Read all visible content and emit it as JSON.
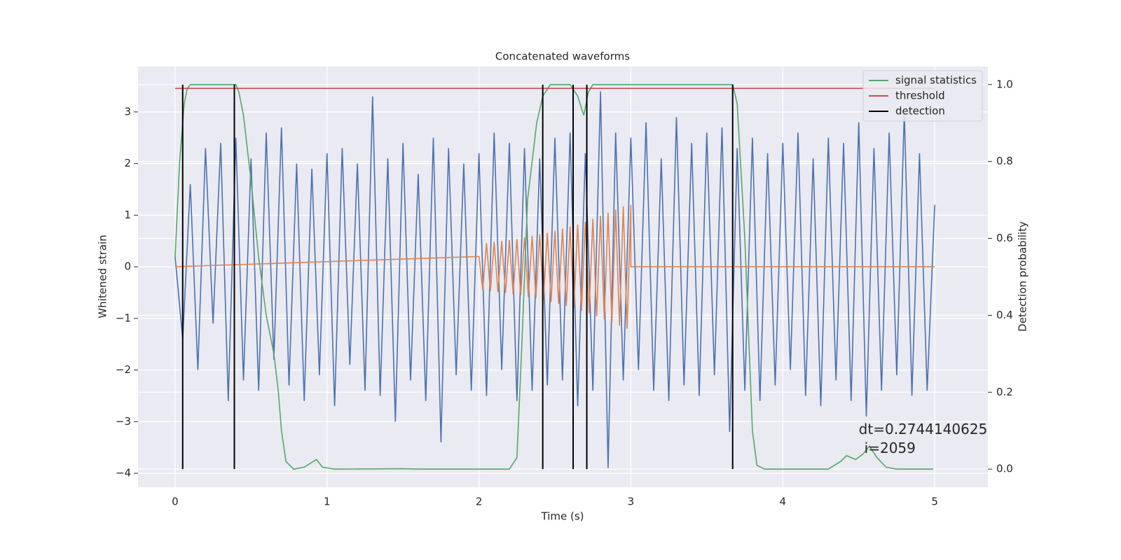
{
  "chart_data": {
    "type": "line",
    "title": "Concatenated waveforms",
    "xlabel": "Time (s)",
    "ylabel": "Whitened strain",
    "y2label": "Detection probability",
    "xlim": [
      -0.244,
      5.35
    ],
    "xticks": [
      0,
      1,
      2,
      3,
      4,
      5
    ],
    "ylim": [
      -4.27,
      3.88
    ],
    "yticks": [
      {
        "value": -4,
        "label": "−4"
      },
      {
        "value": -3,
        "label": "−3"
      },
      {
        "value": -2,
        "label": "−2"
      },
      {
        "value": -1,
        "label": "−1"
      },
      0,
      1,
      2,
      3
    ],
    "y2lim": [
      -0.047,
      1.047
    ],
    "y2ticks": [
      {
        "value": 0,
        "label": "0.0"
      },
      0.2,
      0.4,
      0.6,
      0.8,
      {
        "value": 1,
        "label": "1.0"
      }
    ],
    "grid": true,
    "legend": "upper right",
    "annotations": [
      "dt=0.2744140625",
      "i=2059"
    ],
    "annotation_at": [
      4.5,
      -3.3
    ],
    "series": [
      {
        "name": null,
        "color": "#4c72b0",
        "axis": "y",
        "x": [
          0,
          0.05,
          0.1,
          0.15,
          0.2,
          0.25,
          0.3,
          0.35,
          0.4,
          0.45,
          0.5,
          0.55,
          0.6,
          0.65,
          0.7,
          0.75,
          0.8,
          0.85,
          0.9,
          0.95,
          1,
          1.05,
          1.1,
          1.15,
          1.2,
          1.25,
          1.3,
          1.35,
          1.4,
          1.45,
          1.5,
          1.55,
          1.6,
          1.65,
          1.7,
          1.75,
          1.8,
          1.85,
          1.9,
          1.95,
          2,
          2.05,
          2.1,
          2.15,
          2.2,
          2.25,
          2.3,
          2.35,
          2.4,
          2.45,
          2.5,
          2.55,
          2.6,
          2.65,
          2.7,
          2.75,
          2.8,
          2.85,
          2.9,
          2.95,
          3,
          3.05,
          3.1,
          3.15,
          3.2,
          3.25,
          3.3,
          3.35,
          3.4,
          3.45,
          3.5,
          3.55,
          3.6,
          3.65,
          3.7,
          3.75,
          3.8,
          3.85,
          3.9,
          3.95,
          4,
          4.05,
          4.1,
          4.15,
          4.2,
          4.25,
          4.3,
          4.35,
          4.4,
          4.45,
          4.5,
          4.55,
          4.6,
          4.65,
          4.7,
          4.75,
          4.8,
          4.85,
          4.9,
          4.95,
          5
        ],
        "values": [
          0.2,
          -1.4,
          1.6,
          -2.0,
          2.3,
          -1.1,
          2.4,
          -2.6,
          2.5,
          -2.2,
          2.1,
          -2.4,
          2.6,
          -1.8,
          2.7,
          -2.3,
          2.0,
          -2.6,
          1.9,
          -2.1,
          2.2,
          -2.7,
          2.3,
          -1.9,
          2.0,
          -2.4,
          3.3,
          -2.5,
          2.1,
          -3.0,
          2.4,
          -2.2,
          1.8,
          -2.6,
          2.5,
          -3.4,
          2.3,
          -2.1,
          2.0,
          -2.4,
          2.2,
          -2.5,
          2.6,
          -2.0,
          2.4,
          -2.6,
          2.3,
          -2.4,
          2.1,
          -2.3,
          2.5,
          -2.2,
          2.6,
          -2.7,
          2.2,
          -2.4,
          3.4,
          -3.9,
          2.6,
          -2.2,
          2.5,
          -2.0,
          2.8,
          -2.4,
          2.1,
          -2.6,
          2.9,
          -2.3,
          2.4,
          -2.5,
          2.6,
          -2.1,
          2.7,
          -3.2,
          2.3,
          -2.4,
          2.5,
          -2.6,
          2.2,
          -2.3,
          2.4,
          -2.0,
          2.6,
          -2.5,
          2.1,
          -2.7,
          2.5,
          -2.2,
          2.4,
          -2.6,
          2.8,
          -2.9,
          2.3,
          -2.4,
          2.6,
          -2.1,
          3.0,
          -2.5,
          2.2,
          -2.4,
          1.2
        ]
      },
      {
        "name": null,
        "color": "#dd8452",
        "axis": "y",
        "x": [
          0,
          2.0,
          2.025,
          2.05,
          2.075,
          2.1,
          2.125,
          2.15,
          2.175,
          2.2,
          2.225,
          2.25,
          2.275,
          2.3,
          2.325,
          2.35,
          2.375,
          2.4,
          2.425,
          2.45,
          2.475,
          2.5,
          2.525,
          2.55,
          2.575,
          2.6,
          2.625,
          2.65,
          2.675,
          2.7,
          2.725,
          2.75,
          2.775,
          2.8,
          2.825,
          2.85,
          2.875,
          2.9,
          2.925,
          2.95,
          2.975,
          3.0,
          3.0,
          5.0
        ],
        "values": [
          0,
          0.2,
          -0.45,
          0.46,
          -0.47,
          0.48,
          -0.49,
          0.5,
          -0.51,
          0.52,
          -0.53,
          0.54,
          -0.55,
          0.57,
          -0.58,
          0.6,
          -0.61,
          0.63,
          -0.64,
          0.66,
          -0.68,
          0.7,
          -0.72,
          0.74,
          -0.76,
          0.78,
          -0.8,
          0.82,
          -0.85,
          0.87,
          -0.9,
          0.93,
          -0.96,
          0.99,
          -1.02,
          1.05,
          -1.08,
          1.11,
          -1.14,
          1.17,
          -1.2,
          1.2,
          0,
          0
        ]
      },
      {
        "name": "signal statistics",
        "color": "#55a868",
        "axis": "y2",
        "x": [
          0,
          0.03,
          0.06,
          0.08,
          0.1,
          0.4,
          0.42,
          0.45,
          0.5,
          0.55,
          0.6,
          0.65,
          0.68,
          0.7,
          0.73,
          0.78,
          0.85,
          0.93,
          0.97,
          1.05,
          1.5,
          1.6,
          2.2,
          2.25,
          2.28,
          2.32,
          2.38,
          2.42,
          2.47,
          2.6,
          2.65,
          2.69,
          2.72,
          2.75,
          3.67,
          3.7,
          3.75,
          3.8,
          3.83,
          3.88,
          4.3,
          4.38,
          4.42,
          4.48,
          4.53,
          4.57,
          4.62,
          4.68,
          4.75,
          4.99
        ],
        "values": [
          0.55,
          0.8,
          0.95,
          0.99,
          1.0,
          1.0,
          0.98,
          0.92,
          0.75,
          0.55,
          0.4,
          0.3,
          0.2,
          0.1,
          0.02,
          0.0,
          0.005,
          0.025,
          0.005,
          0.0,
          0.001,
          0.0,
          0.0,
          0.03,
          0.3,
          0.7,
          0.9,
          0.97,
          1.0,
          1.0,
          0.97,
          0.92,
          0.98,
          1.0,
          1.0,
          0.95,
          0.6,
          0.1,
          0.01,
          0.0,
          0.0,
          0.02,
          0.035,
          0.025,
          0.04,
          0.06,
          0.03,
          0.005,
          0.0,
          0.0
        ]
      },
      {
        "name": "threshold",
        "color": "#c44e52",
        "axis": "y2",
        "x": [
          0,
          5
        ],
        "values": [
          0.99,
          0.99
        ]
      },
      {
        "name": "detection",
        "color": "#000000",
        "axis": "y2",
        "type": "vlines",
        "x": [
          0.05,
          0.39,
          2.42,
          2.62,
          2.71,
          3.67
        ],
        "values": [
          1,
          1,
          1,
          1,
          1,
          1
        ]
      }
    ]
  }
}
